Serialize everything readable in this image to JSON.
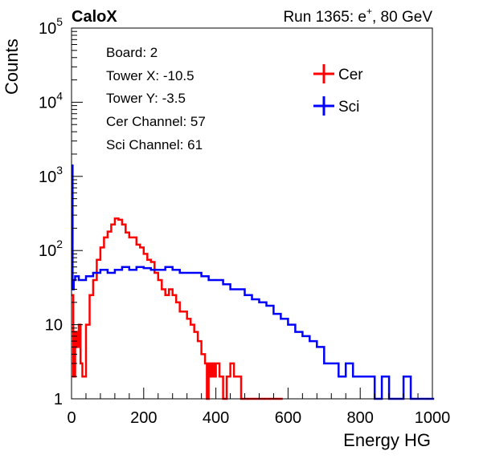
{
  "header": {
    "experiment": "CaloX",
    "run_prefix": "Run 1365: e",
    "run_superscript": "+",
    "run_suffix": ", 80 GeV"
  },
  "info_box": {
    "lines": [
      "Board: 2",
      "Tower X: -10.5",
      "Tower Y: -3.5",
      "Cer Channel: 57",
      "Sci Channel: 61"
    ]
  },
  "colors": {
    "cer": "#ff0000",
    "sci": "#0000ff",
    "axis": "#000000"
  },
  "chart_data": {
    "type": "line",
    "xlabel": "Energy HG",
    "ylabel": "Counts",
    "xlim": [
      0,
      1000
    ],
    "ylim": [
      1,
      100000
    ],
    "yscale": "log",
    "grid": false,
    "legend_position": "top-right",
    "x_ticks": [
      "0",
      "200",
      "400",
      "600",
      "800",
      "1000"
    ],
    "y_ticks": [
      {
        "base": "1",
        "exp": ""
      },
      {
        "base": "10",
        "exp": ""
      },
      {
        "base": "10",
        "exp": "2"
      },
      {
        "base": "10",
        "exp": "3"
      },
      {
        "base": "10",
        "exp": "4"
      },
      {
        "base": "10",
        "exp": "5"
      }
    ],
    "series": [
      {
        "name": "Cer",
        "color": "#ff0000",
        "x": [
          0,
          5,
          10,
          15,
          20,
          25,
          30,
          40,
          50,
          60,
          70,
          80,
          90,
          100,
          110,
          120,
          130,
          140,
          150,
          160,
          170,
          180,
          190,
          200,
          210,
          220,
          230,
          240,
          250,
          260,
          270,
          280,
          290,
          300,
          310,
          320,
          330,
          340,
          350,
          360,
          370,
          375,
          380,
          385,
          390,
          395,
          400,
          410,
          420,
          430,
          440,
          450,
          460,
          470,
          480,
          500,
          520,
          540,
          560,
          580
        ],
        "y": [
          25,
          2,
          8,
          5,
          10,
          3,
          2,
          10,
          25,
          40,
          75,
          110,
          150,
          180,
          225,
          270,
          260,
          225,
          175,
          150,
          150,
          120,
          110,
          90,
          75,
          70,
          50,
          40,
          30,
          25,
          30,
          25,
          20,
          15,
          15,
          12,
          10,
          8,
          6,
          4,
          3,
          1,
          3,
          2,
          3,
          2,
          3,
          2,
          1,
          2,
          3,
          2,
          2,
          1,
          1,
          1,
          1,
          1,
          1,
          1
        ]
      },
      {
        "name": "Sci",
        "color": "#0000ff",
        "x": [
          0,
          3,
          6,
          10,
          20,
          40,
          60,
          80,
          100,
          120,
          140,
          160,
          180,
          200,
          220,
          240,
          260,
          280,
          300,
          320,
          340,
          360,
          380,
          400,
          420,
          440,
          460,
          480,
          500,
          520,
          540,
          560,
          580,
          600,
          620,
          640,
          660,
          680,
          700,
          720,
          740,
          760,
          780,
          800,
          820,
          840,
          860,
          880,
          900,
          920,
          940,
          960,
          980,
          1000
        ],
        "y": [
          1400,
          30,
          40,
          45,
          40,
          45,
          50,
          55,
          50,
          55,
          60,
          55,
          60,
          58,
          55,
          55,
          60,
          55,
          50,
          50,
          50,
          45,
          40,
          40,
          35,
          30,
          30,
          25,
          22,
          20,
          18,
          14,
          12,
          10,
          8,
          7,
          6,
          5,
          3,
          3,
          2,
          3,
          2,
          2,
          2,
          1,
          2,
          1,
          1,
          2,
          1,
          1,
          1,
          1
        ]
      }
    ]
  }
}
